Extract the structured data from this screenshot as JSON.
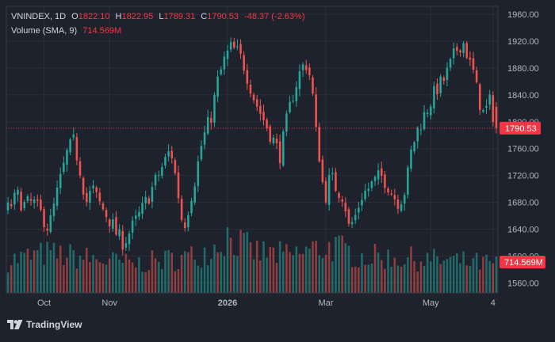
{
  "header": {
    "symbol": "VNINDEX",
    "interval": "1D",
    "open_label": "O",
    "open": "1822.10",
    "high_label": "H",
    "high": "1822.95",
    "low_label": "L",
    "low": "1789.31",
    "close_label": "C",
    "close": "1790.53",
    "change": "-48.37 (-2.63%)",
    "volume_label": "Volume (SMA, 9)",
    "volume_value": "714.569M"
  },
  "brand": {
    "name": "TradingView",
    "logo_icon": "tradingview-logo-icon"
  },
  "colors": {
    "background": "#1e222d",
    "up": "#26a69a",
    "down": "#ef5350",
    "grid": "#2a2e39",
    "price_tag": "#f23645"
  },
  "chart_data": {
    "type": "candlestick",
    "y_ticks": [
      1560,
      1600,
      1640,
      1680,
      1720,
      1760,
      1800,
      1840,
      1880,
      1920,
      1960
    ],
    "ylim": [
      1545,
      1972
    ],
    "x_ticks": [
      {
        "label": "Oct",
        "bar": 11
      },
      {
        "label": "Nov",
        "bar": 31
      },
      {
        "label": "2026",
        "bar": 67
      },
      {
        "label": "Mar",
        "bar": 97
      },
      {
        "label": "May",
        "bar": 129
      },
      {
        "label": "4",
        "bar": 148
      }
    ],
    "bar_count": 150,
    "last_price": 1790.53,
    "last_price_label": "1790.53",
    "volume_sma_label": "714.569M",
    "volume_sma": 714.569,
    "volume_max": 1400,
    "close_anchors": [
      [
        0,
        1670
      ],
      [
        3,
        1690
      ],
      [
        5,
        1675
      ],
      [
        8,
        1680
      ],
      [
        11,
        1660
      ],
      [
        13,
        1640
      ],
      [
        16,
        1700
      ],
      [
        19,
        1755
      ],
      [
        21,
        1770
      ],
      [
        23,
        1730
      ],
      [
        25,
        1680
      ],
      [
        27,
        1700
      ],
      [
        29,
        1680
      ],
      [
        31,
        1665
      ],
      [
        33,
        1650
      ],
      [
        35,
        1630
      ],
      [
        37,
        1620
      ],
      [
        40,
        1645
      ],
      [
        43,
        1670
      ],
      [
        46,
        1700
      ],
      [
        49,
        1730
      ],
      [
        52,
        1760
      ],
      [
        54,
        1705
      ],
      [
        56,
        1640
      ],
      [
        58,
        1680
      ],
      [
        60,
        1720
      ],
      [
        62,
        1770
      ],
      [
        65,
        1810
      ],
      [
        67,
        1860
      ],
      [
        69,
        1890
      ],
      [
        71,
        1910
      ],
      [
        73,
        1905
      ],
      [
        75,
        1890
      ],
      [
        77,
        1860
      ],
      [
        79,
        1830
      ],
      [
        81,
        1810
      ],
      [
        83,
        1790
      ],
      [
        85,
        1770
      ],
      [
        87,
        1750
      ],
      [
        89,
        1800
      ],
      [
        91,
        1840
      ],
      [
        93,
        1870
      ],
      [
        95,
        1890
      ],
      [
        97,
        1860
      ],
      [
        98,
        1800
      ],
      [
        99,
        1760
      ],
      [
        100,
        1740
      ],
      [
        101,
        1680
      ],
      [
        103,
        1720
      ],
      [
        105,
        1700
      ],
      [
        107,
        1690
      ],
      [
        108,
        1670
      ],
      [
        109,
        1640
      ],
      [
        111,
        1660
      ],
      [
        113,
        1690
      ],
      [
        115,
        1700
      ],
      [
        117,
        1710
      ],
      [
        119,
        1720
      ],
      [
        121,
        1710
      ],
      [
        123,
        1690
      ],
      [
        125,
        1680
      ],
      [
        127,
        1700
      ],
      [
        129,
        1760
      ],
      [
        131,
        1790
      ],
      [
        133,
        1810
      ],
      [
        135,
        1830
      ],
      [
        137,
        1850
      ],
      [
        139,
        1860
      ],
      [
        141,
        1880
      ],
      [
        143,
        1905
      ],
      [
        145,
        1920
      ],
      [
        146,
        1915
      ],
      [
        147,
        1895
      ],
      [
        148,
        1880
      ],
      [
        149,
        1870
      ],
      [
        150,
        1840
      ],
      [
        152,
        1810
      ],
      [
        154,
        1830
      ],
      [
        156,
        1790
      ]
    ],
    "volume_profile": [
      [
        0,
        700
      ],
      [
        12,
        850
      ],
      [
        20,
        800
      ],
      [
        40,
        620
      ],
      [
        60,
        800
      ],
      [
        66,
        1000
      ],
      [
        70,
        1250
      ],
      [
        78,
        900
      ],
      [
        90,
        800
      ],
      [
        98,
        950
      ],
      [
        104,
        1000
      ],
      [
        112,
        800
      ],
      [
        126,
        750
      ],
      [
        140,
        700
      ],
      [
        156,
        620
      ]
    ]
  }
}
